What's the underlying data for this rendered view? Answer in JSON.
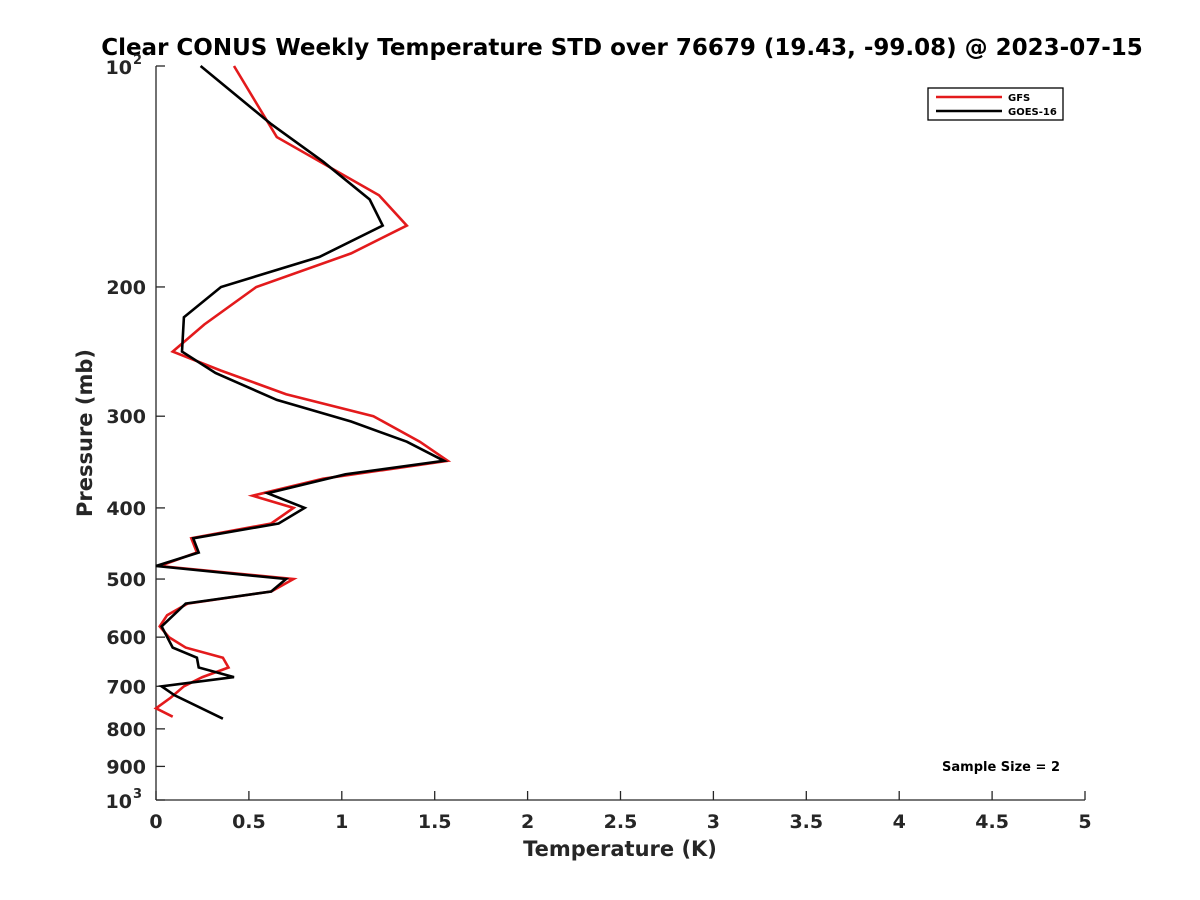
{
  "chart_data": {
    "type": "line",
    "title": "Clear CONUS Weekly Temperature STD over 76679 (19.43, -99.08) @ 2023-07-15",
    "xlabel": "Temperature (K)",
    "ylabel": "Pressure (mb)",
    "xlim": [
      0,
      5
    ],
    "ylim": [
      100,
      1000
    ],
    "y_scale": "log",
    "y_reversed": true,
    "x_ticks": [
      0,
      0.5,
      1,
      1.5,
      2,
      2.5,
      3,
      3.5,
      4,
      4.5,
      5
    ],
    "x_tick_labels": [
      "0",
      "0.5",
      "1",
      "1.5",
      "2",
      "2.5",
      "3",
      "3.5",
      "4",
      "4.5",
      "5"
    ],
    "y_ticks": [
      {
        "value": 100,
        "base": "10",
        "exp": "2"
      },
      {
        "value": 200,
        "label": "200"
      },
      {
        "value": 300,
        "label": "300"
      },
      {
        "value": 400,
        "label": "400"
      },
      {
        "value": 500,
        "label": "500"
      },
      {
        "value": 600,
        "label": "600"
      },
      {
        "value": 700,
        "label": "700"
      },
      {
        "value": 800,
        "label": "800"
      },
      {
        "value": 900,
        "label": "900"
      },
      {
        "value": 1000,
        "base": "10",
        "exp": "3"
      }
    ],
    "grid": false,
    "legend_position": "top-right",
    "annotation": "Sample Size = 2",
    "series": [
      {
        "name": "GFS",
        "color": "#e31a1c",
        "points": [
          {
            "x": 0.42,
            "y": 100
          },
          {
            "x": 0.65,
            "y": 125
          },
          {
            "x": 1.2,
            "y": 150
          },
          {
            "x": 1.35,
            "y": 165
          },
          {
            "x": 1.05,
            "y": 180
          },
          {
            "x": 0.54,
            "y": 200
          },
          {
            "x": 0.26,
            "y": 225
          },
          {
            "x": 0.09,
            "y": 245
          },
          {
            "x": 0.35,
            "y": 260
          },
          {
            "x": 0.7,
            "y": 280
          },
          {
            "x": 1.17,
            "y": 300
          },
          {
            "x": 1.42,
            "y": 325
          },
          {
            "x": 1.57,
            "y": 345
          },
          {
            "x": 0.9,
            "y": 365
          },
          {
            "x": 0.52,
            "y": 385
          },
          {
            "x": 0.74,
            "y": 400
          },
          {
            "x": 0.62,
            "y": 420
          },
          {
            "x": 0.19,
            "y": 440
          },
          {
            "x": 0.22,
            "y": 460
          },
          {
            "x": 0.02,
            "y": 480
          },
          {
            "x": 0.74,
            "y": 500
          },
          {
            "x": 0.62,
            "y": 520
          },
          {
            "x": 0.17,
            "y": 540
          },
          {
            "x": 0.06,
            "y": 560
          },
          {
            "x": 0.02,
            "y": 580
          },
          {
            "x": 0.07,
            "y": 600
          },
          {
            "x": 0.16,
            "y": 620
          },
          {
            "x": 0.36,
            "y": 640
          },
          {
            "x": 0.39,
            "y": 660
          },
          {
            "x": 0.25,
            "y": 680
          },
          {
            "x": 0.15,
            "y": 700
          },
          {
            "x": 0.08,
            "y": 725
          },
          {
            "x": 0.0,
            "y": 750
          },
          {
            "x": 0.09,
            "y": 770
          }
        ]
      },
      {
        "name": "GOES-16",
        "color": "#000000",
        "points": [
          {
            "x": 0.24,
            "y": 100
          },
          {
            "x": 0.62,
            "y": 120
          },
          {
            "x": 0.9,
            "y": 135
          },
          {
            "x": 1.15,
            "y": 152
          },
          {
            "x": 1.22,
            "y": 165
          },
          {
            "x": 0.88,
            "y": 182
          },
          {
            "x": 0.35,
            "y": 200
          },
          {
            "x": 0.15,
            "y": 220
          },
          {
            "x": 0.14,
            "y": 245
          },
          {
            "x": 0.32,
            "y": 262
          },
          {
            "x": 0.65,
            "y": 285
          },
          {
            "x": 1.05,
            "y": 305
          },
          {
            "x": 1.35,
            "y": 325
          },
          {
            "x": 1.55,
            "y": 345
          },
          {
            "x": 1.02,
            "y": 360
          },
          {
            "x": 0.6,
            "y": 382
          },
          {
            "x": 0.8,
            "y": 400
          },
          {
            "x": 0.66,
            "y": 420
          },
          {
            "x": 0.2,
            "y": 440
          },
          {
            "x": 0.23,
            "y": 460
          },
          {
            "x": 0.0,
            "y": 480
          },
          {
            "x": 0.7,
            "y": 500
          },
          {
            "x": 0.62,
            "y": 520
          },
          {
            "x": 0.16,
            "y": 540
          },
          {
            "x": 0.03,
            "y": 580
          },
          {
            "x": 0.09,
            "y": 620
          },
          {
            "x": 0.22,
            "y": 640
          },
          {
            "x": 0.23,
            "y": 660
          },
          {
            "x": 0.42,
            "y": 680
          },
          {
            "x": 0.03,
            "y": 700
          },
          {
            "x": 0.1,
            "y": 720
          },
          {
            "x": 0.36,
            "y": 775
          }
        ]
      }
    ]
  }
}
